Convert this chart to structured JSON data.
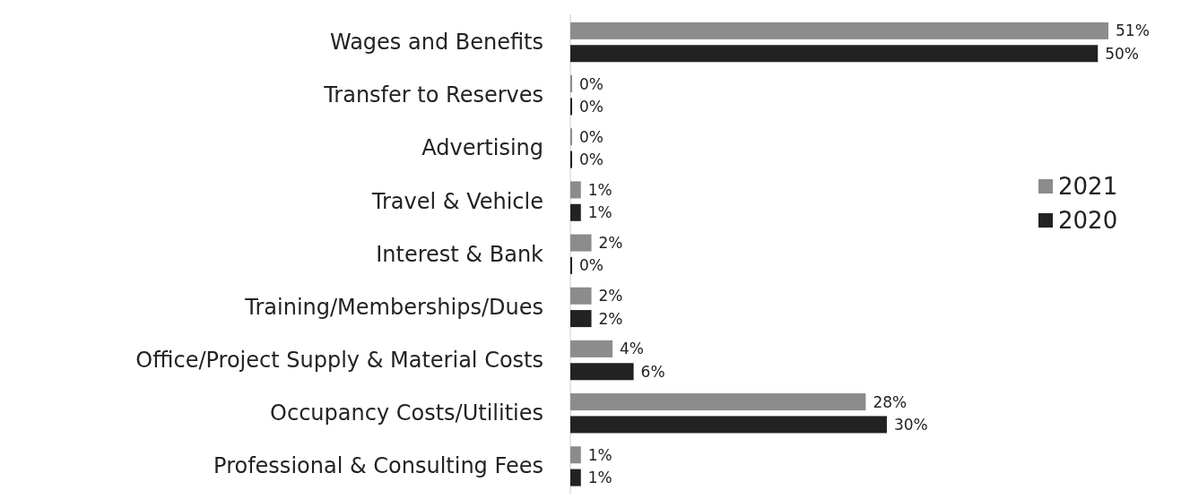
{
  "chart_data": {
    "type": "bar",
    "orientation": "horizontal",
    "categories": [
      "Wages and Benefits",
      "Transfer to Reserves",
      "Advertising",
      "Travel & Vehicle",
      "Interest & Bank",
      "Training/Memberships/Dues",
      "Office/Project Supply & Material Costs",
      "Occupancy Costs/Utilities",
      "Professional & Consulting Fees"
    ],
    "series": [
      {
        "name": "2021",
        "color": "#8c8c8c",
        "values": [
          51,
          0,
          0,
          1,
          2,
          2,
          4,
          28,
          1
        ],
        "value_labels": [
          "51%",
          "0%",
          "0%",
          "1%",
          "2%",
          "2%",
          "4%",
          "28%",
          "1%"
        ]
      },
      {
        "name": "2020",
        "color": "#222222",
        "values": [
          50,
          0,
          0,
          1,
          0,
          2,
          6,
          30,
          1
        ],
        "value_labels": [
          "50%",
          "0%",
          "0%",
          "1%",
          "0%",
          "2%",
          "6%",
          "30%",
          "1%"
        ]
      }
    ],
    "legend": "right"
  }
}
